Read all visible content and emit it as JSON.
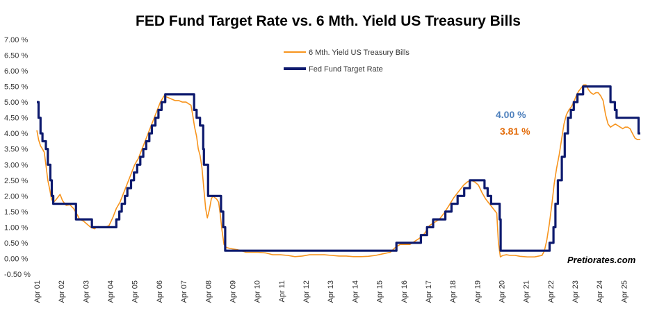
{
  "chart_data": {
    "type": "line",
    "title": "FED Fund Target Rate vs. 6 Mth. Yield US Treasury Bills",
    "xlabel": "",
    "ylabel": "",
    "ylim": [
      -0.5,
      7.0
    ],
    "y_ticks": [
      7.0,
      6.5,
      6.0,
      5.5,
      5.0,
      4.5,
      4.0,
      3.5,
      3.0,
      2.5,
      2.0,
      1.5,
      1.0,
      0.5,
      0.0,
      -0.5
    ],
    "y_tick_labels": [
      "7.00 %",
      "6.50 %",
      "6.00 %",
      "5.50 %",
      "5.00 %",
      "4.50 %",
      "4.00 %",
      "3.50 %",
      "3.00 %",
      "2.50 %",
      "2.00 %",
      "1.50 %",
      "1.00 %",
      "0.50 %",
      "0.00 %",
      "-0.50 %"
    ],
    "x_range": [
      2001.25,
      2025.92
    ],
    "x_ticks": [
      2001.25,
      2002.25,
      2003.25,
      2004.25,
      2005.25,
      2006.25,
      2007.25,
      2008.25,
      2009.25,
      2010.25,
      2011.25,
      2012.25,
      2013.25,
      2014.25,
      2015.25,
      2016.25,
      2017.25,
      2018.25,
      2019.25,
      2020.25,
      2021.25,
      2022.25,
      2023.25,
      2024.25,
      2025.25
    ],
    "x_tick_labels": [
      "Apr 01",
      "Apr 02",
      "Apr 03",
      "Apr 04",
      "Apr 05",
      "Apr 06",
      "Apr 07",
      "Apr 08",
      "Apr 09",
      "Apr 10",
      "Apr 11",
      "Apr 12",
      "Apr 13",
      "Apr 14",
      "Apr 15",
      "Apr 16",
      "Apr 17",
      "Apr 18",
      "Apr 19",
      "Apr 20",
      "Apr 21",
      "Apr 22",
      "Apr 23",
      "Apr 24",
      "Apr 25"
    ],
    "legend_position": "top-center",
    "series": [
      {
        "name": "6 Mth. Yield US Treasury Bills",
        "color": "#F7941D",
        "style": "line",
        "x": [
          2001.25,
          2001.32,
          2001.4,
          2001.48,
          2001.55,
          2001.62,
          2001.7,
          2001.78,
          2001.85,
          2001.92,
          2002.0,
          2002.1,
          2002.2,
          2002.3,
          2002.45,
          2002.6,
          2002.75,
          2002.9,
          2003.0,
          2003.15,
          2003.3,
          2003.45,
          2003.6,
          2003.75,
          2003.9,
          2004.05,
          2004.2,
          2004.35,
          2004.5,
          2004.65,
          2004.8,
          2004.95,
          2005.1,
          2005.25,
          2005.4,
          2005.55,
          2005.7,
          2005.85,
          2006.0,
          2006.15,
          2006.3,
          2006.45,
          2006.6,
          2006.75,
          2006.9,
          2007.05,
          2007.2,
          2007.35,
          2007.45,
          2007.55,
          2007.62,
          2007.7,
          2007.78,
          2007.85,
          2007.92,
          2008.0,
          2008.08,
          2008.15,
          2008.22,
          2008.3,
          2008.38,
          2008.45,
          2008.52,
          2008.6,
          2008.68,
          2008.75,
          2008.82,
          2008.9,
          2009.0,
          2009.15,
          2009.3,
          2009.45,
          2009.6,
          2009.8,
          2010.0,
          2010.3,
          2010.6,
          2010.9,
          2011.2,
          2011.5,
          2011.8,
          2012.1,
          2012.4,
          2012.7,
          2013.0,
          2013.3,
          2013.6,
          2013.9,
          2014.2,
          2014.5,
          2014.8,
          2015.1,
          2015.4,
          2015.7,
          2015.9,
          2016.1,
          2016.3,
          2016.5,
          2016.7,
          2016.9,
          2017.1,
          2017.3,
          2017.5,
          2017.7,
          2017.9,
          2018.1,
          2018.3,
          2018.5,
          2018.7,
          2018.85,
          2019.0,
          2019.15,
          2019.3,
          2019.45,
          2019.6,
          2019.75,
          2019.9,
          2020.05,
          2020.12,
          2020.2,
          2020.3,
          2020.45,
          2020.6,
          2020.8,
          2021.0,
          2021.3,
          2021.6,
          2021.9,
          2022.0,
          2022.1,
          2022.2,
          2022.3,
          2022.4,
          2022.5,
          2022.6,
          2022.7,
          2022.8,
          2022.9,
          2023.0,
          2023.1,
          2023.2,
          2023.3,
          2023.4,
          2023.5,
          2023.6,
          2023.7,
          2023.8,
          2023.9,
          2024.0,
          2024.1,
          2024.2,
          2024.3,
          2024.4,
          2024.5,
          2024.6,
          2024.7,
          2024.8,
          2024.9,
          2025.0,
          2025.1,
          2025.2,
          2025.3,
          2025.4,
          2025.5,
          2025.6,
          2025.7,
          2025.8,
          2025.92
        ],
        "values": [
          4.1,
          3.8,
          3.6,
          3.5,
          3.4,
          3.0,
          2.5,
          2.2,
          1.9,
          1.8,
          1.85,
          1.95,
          2.05,
          1.85,
          1.7,
          1.72,
          1.6,
          1.4,
          1.25,
          1.2,
          1.1,
          1.0,
          0.95,
          1.02,
          1.0,
          1.0,
          1.05,
          1.3,
          1.6,
          1.8,
          2.1,
          2.4,
          2.7,
          3.0,
          3.2,
          3.5,
          3.8,
          4.1,
          4.4,
          4.7,
          5.0,
          5.2,
          5.15,
          5.1,
          5.05,
          5.05,
          5.0,
          5.0,
          4.95,
          4.9,
          4.6,
          4.2,
          3.9,
          3.5,
          3.3,
          2.9,
          2.2,
          1.6,
          1.3,
          1.55,
          1.9,
          2.0,
          1.95,
          1.9,
          1.8,
          1.4,
          0.9,
          0.45,
          0.35,
          0.32,
          0.3,
          0.28,
          0.25,
          0.2,
          0.2,
          0.2,
          0.18,
          0.12,
          0.12,
          0.1,
          0.06,
          0.08,
          0.12,
          0.12,
          0.12,
          0.1,
          0.08,
          0.08,
          0.06,
          0.06,
          0.07,
          0.1,
          0.15,
          0.2,
          0.35,
          0.45,
          0.45,
          0.45,
          0.55,
          0.65,
          0.8,
          1.05,
          1.15,
          1.25,
          1.45,
          1.7,
          1.95,
          2.15,
          2.35,
          2.45,
          2.5,
          2.45,
          2.35,
          2.1,
          1.9,
          1.75,
          1.6,
          1.45,
          0.5,
          0.05,
          0.1,
          0.12,
          0.1,
          0.1,
          0.07,
          0.05,
          0.05,
          0.1,
          0.25,
          0.6,
          1.1,
          1.7,
          2.4,
          2.9,
          3.3,
          3.8,
          4.3,
          4.6,
          4.75,
          4.85,
          5.0,
          5.2,
          5.35,
          5.45,
          5.55,
          5.55,
          5.4,
          5.3,
          5.25,
          5.3,
          5.3,
          5.2,
          5.05,
          4.6,
          4.3,
          4.2,
          4.25,
          4.3,
          4.25,
          4.2,
          4.15,
          4.2,
          4.2,
          4.15,
          4.0,
          3.85,
          3.8,
          3.81
        ]
      },
      {
        "name": "Fed Fund Target Rate",
        "color": "#0D1A6E",
        "style": "step",
        "x": [
          2001.25,
          2001.32,
          2001.4,
          2001.48,
          2001.62,
          2001.7,
          2001.8,
          2001.86,
          2001.92,
          2002.85,
          2003.5,
          2004.5,
          2004.62,
          2004.72,
          2004.85,
          2004.95,
          2005.1,
          2005.22,
          2005.35,
          2005.48,
          2005.6,
          2005.72,
          2005.85,
          2005.95,
          2006.1,
          2006.22,
          2006.35,
          2006.5,
          2007.68,
          2007.78,
          2007.92,
          2008.05,
          2008.08,
          2008.25,
          2008.78,
          2008.87,
          2008.95,
          2015.95,
          2016.95,
          2017.2,
          2017.45,
          2017.95,
          2018.2,
          2018.45,
          2018.72,
          2018.95,
          2019.55,
          2019.68,
          2019.82,
          2020.17,
          2020.21,
          2022.21,
          2022.37,
          2022.45,
          2022.55,
          2022.71,
          2022.83,
          2022.96,
          2023.08,
          2023.2,
          2023.35,
          2023.58,
          2024.7,
          2024.88,
          2024.95,
          2025.85
        ],
        "values": [
          5.0,
          4.5,
          4.0,
          3.75,
          3.5,
          3.0,
          2.5,
          2.0,
          1.75,
          1.25,
          1.0,
          1.25,
          1.5,
          1.75,
          2.0,
          2.25,
          2.5,
          2.75,
          3.0,
          3.25,
          3.5,
          3.75,
          4.0,
          4.25,
          4.5,
          4.75,
          5.0,
          5.25,
          4.75,
          4.5,
          4.25,
          3.5,
          3.0,
          2.0,
          1.5,
          1.0,
          0.25,
          0.5,
          0.75,
          1.0,
          1.25,
          1.5,
          1.75,
          2.0,
          2.25,
          2.5,
          2.25,
          2.0,
          1.75,
          1.25,
          0.25,
          0.5,
          1.0,
          1.75,
          2.5,
          3.25,
          4.0,
          4.5,
          4.75,
          5.0,
          5.25,
          5.5,
          5.0,
          4.75,
          4.5,
          4.0
        ]
      }
    ],
    "annotations": [
      {
        "label": "4.00 %",
        "color": "#4F81BD"
      },
      {
        "label": "3.81 %",
        "color": "#E36C0A"
      }
    ],
    "credit": "Pretiorates.com"
  }
}
